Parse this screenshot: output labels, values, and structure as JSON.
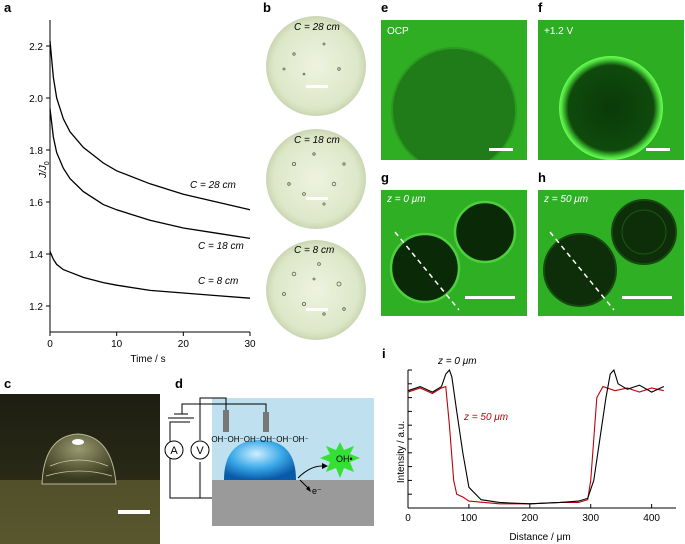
{
  "panel_labels": {
    "a": "a",
    "b": "b",
    "c": "c",
    "d": "d",
    "e": "e",
    "f": "f",
    "g": "g",
    "h": "h",
    "i": "i"
  },
  "chart_a": {
    "type": "line",
    "ylabel": "J/J",
    "ylabel_sub": "0",
    "xlabel": "Time / s",
    "xlim": [
      0,
      30
    ],
    "ylim": [
      1.1,
      2.3
    ],
    "xticks": [
      "0",
      "10",
      "20",
      "30"
    ],
    "yticks": [
      "1.2",
      "1.4",
      "1.6",
      "1.8",
      "2.0",
      "2.2"
    ],
    "series": [
      {
        "name": "C = 28 cm",
        "x": [
          0,
          0.5,
          1,
          2,
          3,
          5,
          8,
          10,
          15,
          20,
          25,
          30
        ],
        "y": [
          2.22,
          2.08,
          2.0,
          1.92,
          1.87,
          1.81,
          1.75,
          1.72,
          1.67,
          1.63,
          1.6,
          1.57
        ]
      },
      {
        "name": "C = 18 cm",
        "x": [
          0,
          0.5,
          1,
          2,
          3,
          5,
          8,
          10,
          15,
          20,
          25,
          30
        ],
        "y": [
          1.96,
          1.85,
          1.79,
          1.73,
          1.69,
          1.64,
          1.59,
          1.57,
          1.53,
          1.5,
          1.48,
          1.46
        ]
      },
      {
        "name": "C = 8 cm",
        "x": [
          0,
          0.5,
          1,
          2,
          3,
          5,
          8,
          10,
          15,
          20,
          25,
          30
        ],
        "y": [
          1.41,
          1.38,
          1.36,
          1.34,
          1.33,
          1.31,
          1.29,
          1.28,
          1.26,
          1.25,
          1.24,
          1.23
        ]
      }
    ],
    "curve_labels": {
      "c28": "C = 28 cm",
      "c18": "C = 18 cm",
      "c8": "C = 8 cm"
    }
  },
  "panel_b": {
    "labels": [
      "C = 28 cm",
      "C = 18 cm",
      "C = 8 cm"
    ]
  },
  "panel_e": {
    "label": "OCP"
  },
  "panel_f": {
    "label": "+1.2 V"
  },
  "panel_g": {
    "label": "z = 0 μm"
  },
  "panel_h": {
    "label": "z = 50 μm"
  },
  "panel_d": {
    "ammeter": "A",
    "voltmeter": "V",
    "oh_ions": "OH⁻OH⁻OH⁻OH⁻OH⁻OH⁻",
    "oh_radical": "OH•",
    "electron": "e⁻"
  },
  "chart_i": {
    "type": "line",
    "ylabel": "Intensity / a.u.",
    "xlabel": "Distance / μm",
    "xlim": [
      0,
      440
    ],
    "xticks": [
      "0",
      "100",
      "200",
      "300",
      "400"
    ],
    "series": [
      {
        "name": "z = 0 μm",
        "color": "#000000",
        "x": [
          0,
          20,
          40,
          55,
          62,
          68,
          72,
          80,
          90,
          100,
          120,
          150,
          200,
          250,
          280,
          295,
          305,
          315,
          325,
          332,
          338,
          345,
          360,
          380,
          400,
          420
        ],
        "y": [
          0.85,
          0.88,
          0.84,
          0.88,
          0.97,
          1.0,
          0.95,
          0.7,
          0.4,
          0.15,
          0.06,
          0.04,
          0.03,
          0.04,
          0.05,
          0.07,
          0.2,
          0.5,
          0.8,
          0.97,
          1.0,
          0.9,
          0.86,
          0.89,
          0.84,
          0.88
        ]
      },
      {
        "name": "z = 50 μm",
        "color": "#c0000a",
        "x": [
          0,
          20,
          40,
          55,
          62,
          68,
          75,
          80,
          90,
          100,
          150,
          200,
          250,
          280,
          295,
          300,
          305,
          310,
          320,
          340,
          360,
          380,
          400,
          420
        ],
        "y": [
          0.84,
          0.87,
          0.83,
          0.87,
          0.88,
          0.6,
          0.2,
          0.1,
          0.08,
          0.05,
          0.03,
          0.03,
          0.04,
          0.04,
          0.06,
          0.2,
          0.5,
          0.8,
          0.88,
          0.85,
          0.87,
          0.84,
          0.87,
          0.85
        ]
      }
    ],
    "legend_labels": {
      "z0": "z = 0 μm",
      "z50": "z = 50 μm"
    }
  }
}
